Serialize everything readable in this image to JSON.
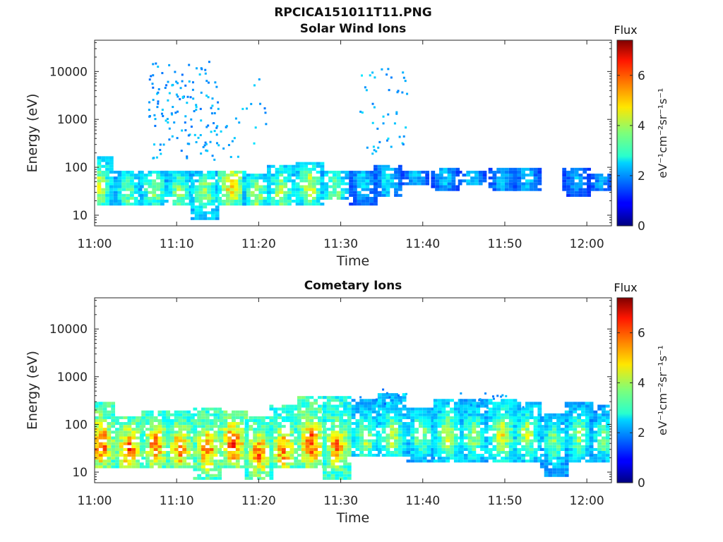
{
  "figure": {
    "filename_title": "RPCICA151011T11.PNG"
  },
  "chart_data": [
    {
      "type": "heatmap",
      "title": "Solar Wind Ions",
      "xlabel": "Time",
      "ylabel": "Energy (eV)",
      "yscale": "log",
      "x_unit": "minutes after 11:00",
      "xlim": [
        0,
        63
      ],
      "ylim": [
        6,
        45000
      ],
      "x_ticks": [
        "11:00",
        "11:10",
        "11:20",
        "11:30",
        "11:40",
        "11:50",
        "12:00"
      ],
      "y_ticks": [
        "10",
        "100",
        "1000",
        "10000"
      ],
      "colorbar": {
        "title": "Flux",
        "label": "eV⁻¹cm⁻²sr⁻¹s⁻¹",
        "range": [
          0,
          7.4
        ],
        "ticks": [
          "0",
          "2",
          "4",
          "6"
        ]
      },
      "grid": false,
      "bursts": [
        {
          "t": 0.3,
          "e": 40,
          "lo": 15,
          "hi": 180,
          "peak": 4.6
        },
        {
          "t": 3.8,
          "e": 30,
          "lo": 15,
          "hi": 90,
          "peak": 4.0
        },
        {
          "t": 7.0,
          "e": 35,
          "lo": 15,
          "hi": 80,
          "peak": 4.2
        },
        {
          "t": 10.0,
          "e": 30,
          "lo": 15,
          "hi": 80,
          "peak": 4.1
        },
        {
          "t": 13.2,
          "e": 30,
          "lo": 8,
          "hi": 80,
          "peak": 4.3
        },
        {
          "t": 16.5,
          "e": 40,
          "lo": 15,
          "hi": 90,
          "peak": 5.3
        },
        {
          "t": 19.5,
          "e": 25,
          "lo": 15,
          "hi": 70,
          "peak": 4.3
        },
        {
          "t": 22.5,
          "e": 30,
          "lo": 15,
          "hi": 120,
          "peak": 4.4
        },
        {
          "t": 26.0,
          "e": 40,
          "lo": 15,
          "hi": 130,
          "peak": 4.6
        },
        {
          "t": 29.0,
          "e": 35,
          "lo": 20,
          "hi": 90,
          "peak": 4.0
        },
        {
          "t": 32.5,
          "e": 50,
          "lo": 15,
          "hi": 90,
          "peak": 2.8
        },
        {
          "t": 35.5,
          "e": 50,
          "lo": 25,
          "hi": 110,
          "peak": 3.0
        },
        {
          "t": 38.8,
          "e": 60,
          "lo": 40,
          "hi": 80,
          "peak": 2.6
        },
        {
          "t": 42.5,
          "e": 60,
          "lo": 30,
          "hi": 100,
          "peak": 2.6
        },
        {
          "t": 45.8,
          "e": 55,
          "lo": 40,
          "hi": 80,
          "peak": 2.6
        },
        {
          "t": 49.5,
          "e": 60,
          "lo": 30,
          "hi": 100,
          "peak": 2.6
        },
        {
          "t": 52.5,
          "e": 60,
          "lo": 30,
          "hi": 100,
          "peak": 2.6
        },
        {
          "t": 58.5,
          "e": 60,
          "lo": 25,
          "hi": 100,
          "peak": 2.4
        },
        {
          "t": 61.5,
          "e": 50,
          "lo": 30,
          "hi": 70,
          "peak": 2.3
        }
      ],
      "scatter_clusters": [
        {
          "t0": 6.5,
          "t1": 15.0,
          "lo": 150,
          "hi": 17000,
          "n": 140,
          "value": 1.7
        },
        {
          "t0": 15.0,
          "t1": 21.0,
          "lo": 150,
          "hi": 9000,
          "n": 22,
          "value": 1.8
        },
        {
          "t0": 32.0,
          "t1": 38.0,
          "lo": 200,
          "hi": 14000,
          "n": 45,
          "value": 1.8
        }
      ]
    },
    {
      "type": "heatmap",
      "title": "Cometary Ions",
      "xlabel": "Time",
      "ylabel": "Energy (eV)",
      "yscale": "log",
      "x_unit": "minutes after 11:00",
      "xlim": [
        0,
        63
      ],
      "ylim": [
        6,
        45000
      ],
      "x_ticks": [
        "11:00",
        "11:10",
        "11:20",
        "11:30",
        "11:40",
        "11:50",
        "12:00"
      ],
      "y_ticks": [
        "10",
        "100",
        "1000",
        "10000"
      ],
      "colorbar": {
        "title": "Flux",
        "label": "eV⁻¹cm⁻²sr⁻¹s⁻¹",
        "range": [
          0,
          7.4
        ],
        "ticks": [
          "0",
          "2",
          "4",
          "6"
        ]
      },
      "grid": false,
      "bursts": [
        {
          "t": 0.5,
          "e": 40,
          "lo": 12,
          "hi": 300,
          "peak": 6.4
        },
        {
          "t": 4.0,
          "e": 30,
          "lo": 12,
          "hi": 150,
          "peak": 6.2
        },
        {
          "t": 7.2,
          "e": 35,
          "lo": 12,
          "hi": 200,
          "peak": 6.0
        },
        {
          "t": 10.2,
          "e": 30,
          "lo": 12,
          "hi": 200,
          "peak": 6.0
        },
        {
          "t": 13.5,
          "e": 30,
          "lo": 7,
          "hi": 220,
          "peak": 6.1
        },
        {
          "t": 16.7,
          "e": 40,
          "lo": 12,
          "hi": 200,
          "peak": 6.5
        },
        {
          "t": 19.8,
          "e": 25,
          "lo": 7,
          "hi": 150,
          "peak": 6.0
        },
        {
          "t": 22.8,
          "e": 30,
          "lo": 12,
          "hi": 250,
          "peak": 5.9
        },
        {
          "t": 26.2,
          "e": 40,
          "lo": 12,
          "hi": 400,
          "peak": 6.4
        },
        {
          "t": 29.3,
          "e": 35,
          "lo": 7,
          "hi": 400,
          "peak": 5.8
        },
        {
          "t": 32.8,
          "e": 50,
          "lo": 20,
          "hi": 350,
          "peak": 4.4
        },
        {
          "t": 36.0,
          "e": 55,
          "lo": 20,
          "hi": 450,
          "peak": 4.6
        },
        {
          "t": 39.5,
          "e": 60,
          "lo": 15,
          "hi": 220,
          "peak": 4.2
        },
        {
          "t": 42.8,
          "e": 60,
          "lo": 15,
          "hi": 350,
          "peak": 4.6
        },
        {
          "t": 46.0,
          "e": 55,
          "lo": 15,
          "hi": 320,
          "peak": 4.3
        },
        {
          "t": 49.5,
          "e": 60,
          "lo": 15,
          "hi": 350,
          "peak": 4.8
        },
        {
          "t": 52.5,
          "e": 60,
          "lo": 15,
          "hi": 300,
          "peak": 4.5
        },
        {
          "t": 55.8,
          "e": 45,
          "lo": 8,
          "hi": 180,
          "peak": 4.0
        },
        {
          "t": 58.8,
          "e": 60,
          "lo": 15,
          "hi": 280,
          "peak": 4.2
        },
        {
          "t": 61.8,
          "e": 50,
          "lo": 15,
          "hi": 250,
          "peak": 3.9
        }
      ],
      "scatter_clusters": [
        {
          "t0": 32.0,
          "t1": 38.0,
          "lo": 250,
          "hi": 600,
          "n": 12,
          "value": 1.6
        },
        {
          "t0": 44.0,
          "t1": 53.0,
          "lo": 220,
          "hi": 500,
          "n": 14,
          "value": 1.6
        }
      ]
    }
  ]
}
